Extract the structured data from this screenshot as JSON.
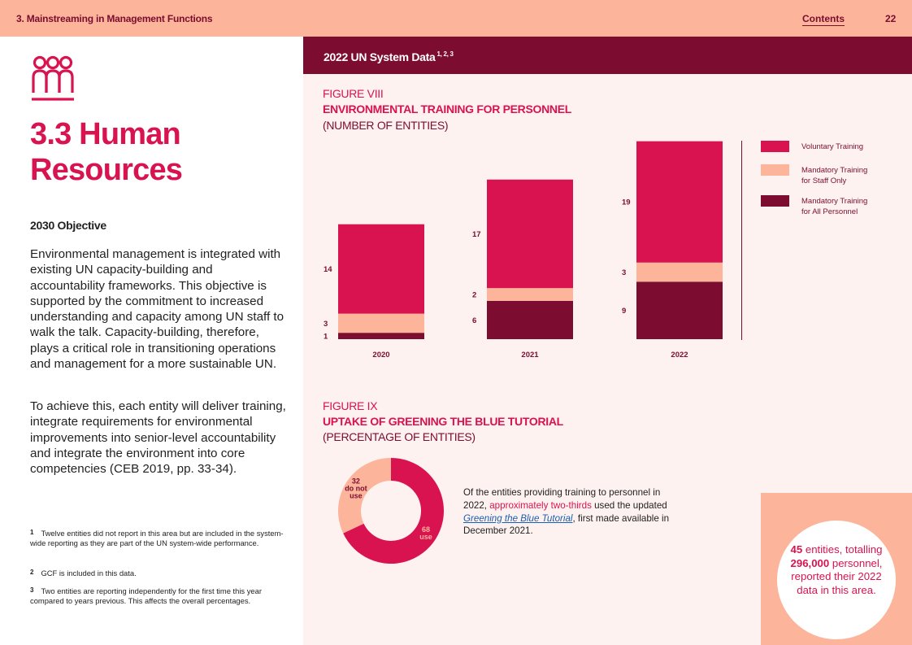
{
  "header": {
    "section_title": "3. Mainstreaming in Management Functions",
    "contents_label": "Contents",
    "page_number": "22"
  },
  "left": {
    "icon": "people-icon",
    "heading": "3.3  Human Resources",
    "objective_heading": "2030 Objective",
    "paragraph_1": "Environmental management is integrated with existing UN capacity-building and accountability frameworks. This objective is supported by the commitment to increased understanding and capacity among UN staff to walk the talk. Capacity-building, therefore, plays a critical role in transitioning operations and management for a more sustainable UN.",
    "paragraph_2": "To achieve this, each entity will deliver training, integrate requirements for environmental improvements into senior-level accountability and integrate the environment into core competencies (CEB 2019, pp. 33-34).",
    "footnotes": [
      {
        "num": "1",
        "text": "Twelve entities did not report in this area but are included in the system-wide reporting as they are part of the UN system-wide performance."
      },
      {
        "num": "2",
        "text": "GCF is included in this data."
      },
      {
        "num": "3",
        "text": "Two entities are reporting independently for the first time this year compared to years previous. This affects the overall percentages."
      }
    ]
  },
  "banner": {
    "title": "2022 UN System Data",
    "superscript": "1, 2, 3"
  },
  "figure_8": {
    "label": "FIGURE VIII",
    "title": "ENVIRONMENTAL TRAINING FOR PERSONNEL",
    "subtitle": "(NUMBER OF ENTITIES)"
  },
  "figure_9": {
    "label": "FIGURE IX",
    "title": "UPTAKE OF GREENING THE BLUE TUTORIAL",
    "subtitle": "(PERCENTAGE OF ENTITIES)",
    "note_prefix": "Of the entities providing training to personnel in 2022, ",
    "note_highlight": "approximately two-thirds",
    "note_middle": " used the updated ",
    "note_link": "Greening the Blue Tutorial",
    "note_suffix": ", first made available in December 2021."
  },
  "callout": {
    "count": "45",
    "text_1": " entities, totalling ",
    "personnel": "296,000",
    "text_2": " personnel, reported their 2022 data in this area."
  },
  "colors": {
    "voluntary": "#d91350",
    "mandatory_staff": "#fcb49b",
    "mandatory_all": "#7c0d30",
    "accent": "#d91350"
  },
  "chart_data": [
    {
      "type": "bar",
      "stacked": true,
      "title": "ENVIRONMENTAL TRAINING FOR PERSONNEL",
      "subtitle": "(NUMBER OF ENTITIES)",
      "categories": [
        "2020",
        "2021",
        "2022"
      ],
      "series": [
        {
          "name": "Mandatory Training for All Personnel",
          "values": [
            1,
            6,
            9
          ]
        },
        {
          "name": "Mandatory Training for Staff Only",
          "values": [
            3,
            2,
            3
          ]
        },
        {
          "name": "Voluntary Training",
          "values": [
            14,
            17,
            19
          ]
        }
      ],
      "legend": [
        "Voluntary Training",
        "Mandatory Training for Staff Only",
        "Mandatory Training for All Personnel"
      ],
      "legend_position": "right",
      "grid": false
    },
    {
      "type": "pie",
      "donut": true,
      "title": "UPTAKE OF GREENING THE BLUE TUTORIAL",
      "subtitle": "(PERCENTAGE OF ENTITIES)",
      "slices": [
        {
          "label": "use",
          "value": 68
        },
        {
          "label": "do not use",
          "value": 32
        }
      ]
    }
  ]
}
